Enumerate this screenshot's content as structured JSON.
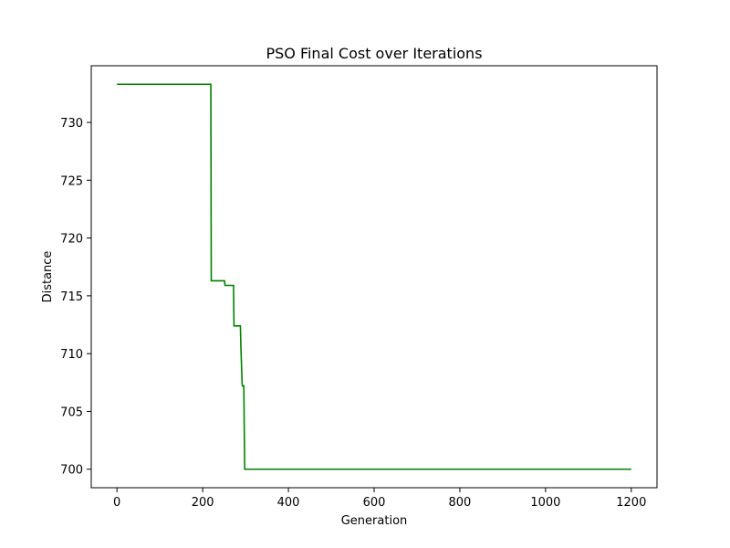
{
  "chart_data": {
    "type": "line",
    "title": "PSO Final Cost over Iterations",
    "xlabel": "Generation",
    "ylabel": "Distance",
    "xlim": [
      -60,
      1260
    ],
    "ylim": [
      698.4,
      734.9
    ],
    "xticks": [
      0,
      200,
      400,
      600,
      800,
      1000,
      1200
    ],
    "yticks": [
      700,
      705,
      710,
      715,
      720,
      725,
      730
    ],
    "grid": false,
    "series": [
      {
        "color": "#008000",
        "x": [
          0,
          219,
          220,
          251,
          252,
          272,
          273,
          288,
          289,
          292,
          293,
          296,
          297,
          298,
          299,
          1200
        ],
        "y": [
          733.3,
          733.3,
          716.3,
          716.3,
          715.9,
          715.9,
          712.4,
          712.4,
          710.8,
          707.4,
          707.2,
          707.2,
          703.5,
          700.0,
          700.0,
          700.0
        ]
      }
    ]
  }
}
